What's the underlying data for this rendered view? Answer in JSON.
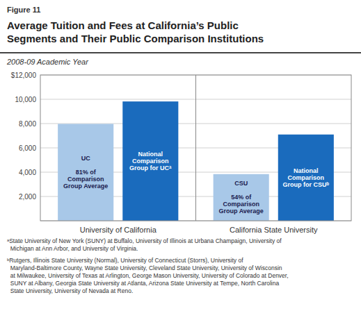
{
  "chart_data": {
    "type": "bar",
    "figure_label": "Figure 11",
    "title": "Average Tuition and Fees at California’s Public\nSegments and Their Public Comparison Institutions",
    "subtitle": "2008-09 Academic Year",
    "categories": [
      "UC\n\n81% of\nComparison\nGroup Average",
      "National\nComparison\nGroup for UCᵃ",
      "CSU\n\n54% of\nComparison\nGroup Average",
      "National\nComparison\nGroup for CSUᵇ"
    ],
    "values": [
      7973,
      9820,
      3840,
      7100
    ],
    "colors": [
      "#a8c8e8",
      "#1a6bbd",
      "#a8c8e8",
      "#1a6bbd"
    ],
    "group_labels": [
      "University of California",
      "California State University"
    ],
    "ylim": [
      0,
      12000
    ],
    "yticks": [
      {
        "value": 0,
        "label": null
      },
      {
        "value": 2000,
        "label": "2,000"
      },
      {
        "value": 4000,
        "label": "4,000"
      },
      {
        "value": 6000,
        "label": "6,000"
      },
      {
        "value": 8000,
        "label": "8,000"
      },
      {
        "value": 10000,
        "label": "10,000"
      },
      {
        "value": 12000,
        "label": "$12,000"
      }
    ],
    "grid": true,
    "footnotes": [
      "ᵃState University of New York (SUNY) at Buffalo, University of Illinois at Urbana Champaign, University of\n  Michigan at Ann Arbor, and University of Virginia.",
      "ᵇRutgers, Illinois State University (Normal), University of Connecticut (Storrs), University of\n  Maryland-Baltimore County, Wayne State University, Cleveland State University, University of Wisconsin\n  at Milwaukee, University of Texas at Arlington, George Mason University, University of Colorado at Denver,\n  SUNY at Albany, Georgia State University at Atlanta, Arizona State University at Tempe, North Carolina\n  State University, University of Nevada at Reno."
    ]
  }
}
